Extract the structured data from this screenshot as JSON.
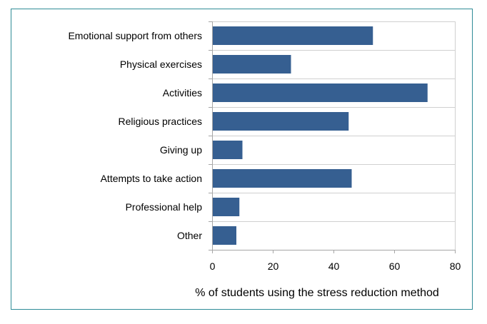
{
  "chart_data": {
    "type": "bar",
    "orientation": "horizontal",
    "title": "",
    "xlabel": "% of students using the stress reduction method",
    "ylabel": "",
    "categories": [
      "Emotional support from others",
      "Physical exercises",
      "Activities",
      "Religious practices",
      "Giving up",
      "Attempts to take action",
      "Professional help",
      "Other"
    ],
    "values": [
      53,
      26,
      71,
      45,
      10,
      46,
      9,
      8
    ],
    "xlim": [
      0,
      80
    ],
    "xticks": [
      0,
      20,
      40,
      60,
      80
    ],
    "grid": true,
    "bar_color": "#365f91",
    "grid_color": "#d0d0d0",
    "frame_color": "#2f8c97"
  }
}
